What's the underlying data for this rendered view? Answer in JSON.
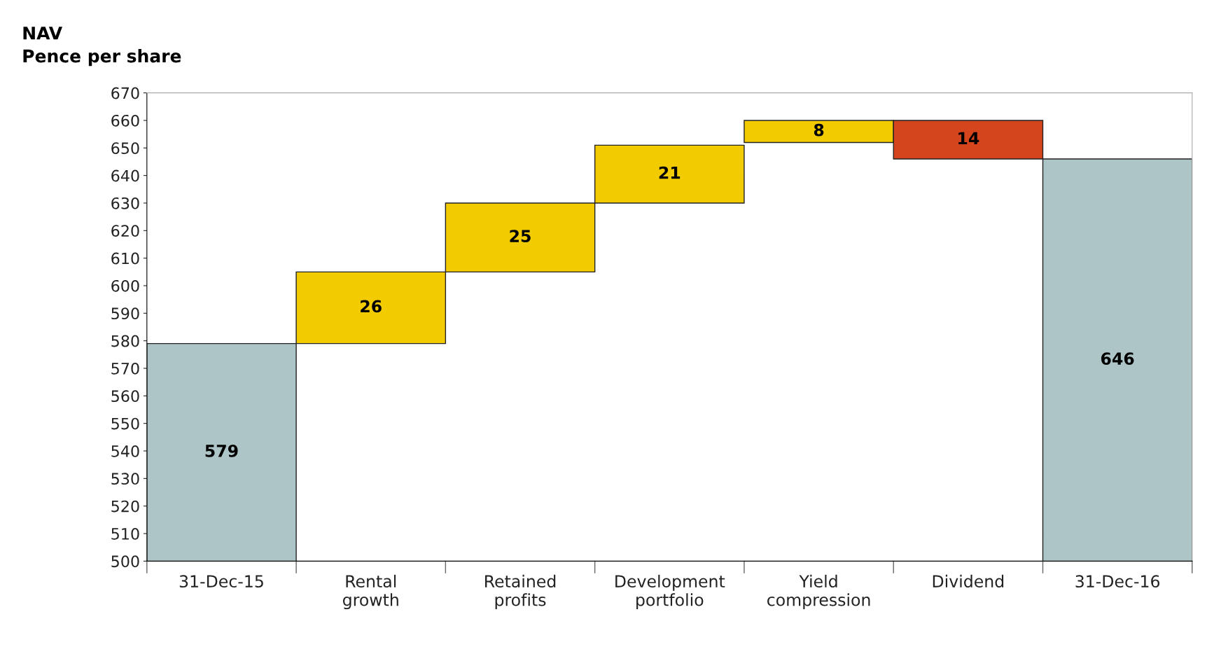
{
  "chart_data": {
    "type": "bar",
    "title": "NAV",
    "subtitle": "Pence per share",
    "categories": [
      "31-Dec-15",
      "Rental\ngrowth",
      "Retained\nprofits",
      "Development\nportfolio",
      "Yield\ncompression",
      "Dividend",
      "31-Dec-16"
    ],
    "values": [
      579,
      26,
      25,
      21,
      8,
      -14,
      646
    ],
    "base": [
      0,
      579,
      605,
      630,
      652,
      660,
      0
    ],
    "colors": [
      "#adc5c6",
      "#f2cc00",
      "#f2cc00",
      "#f2cc00",
      "#f2cc00",
      "#d4451e",
      "#adc5c6"
    ],
    "value_labels": [
      "579",
      "26",
      "25",
      "21",
      "8",
      "14",
      "646"
    ],
    "grid": false,
    "legend": false,
    "ylim": [
      500,
      670
    ],
    "yticks": [
      500,
      510,
      520,
      530,
      540,
      550,
      560,
      570,
      580,
      590,
      600,
      610,
      620,
      630,
      640,
      650,
      660,
      670
    ]
  }
}
